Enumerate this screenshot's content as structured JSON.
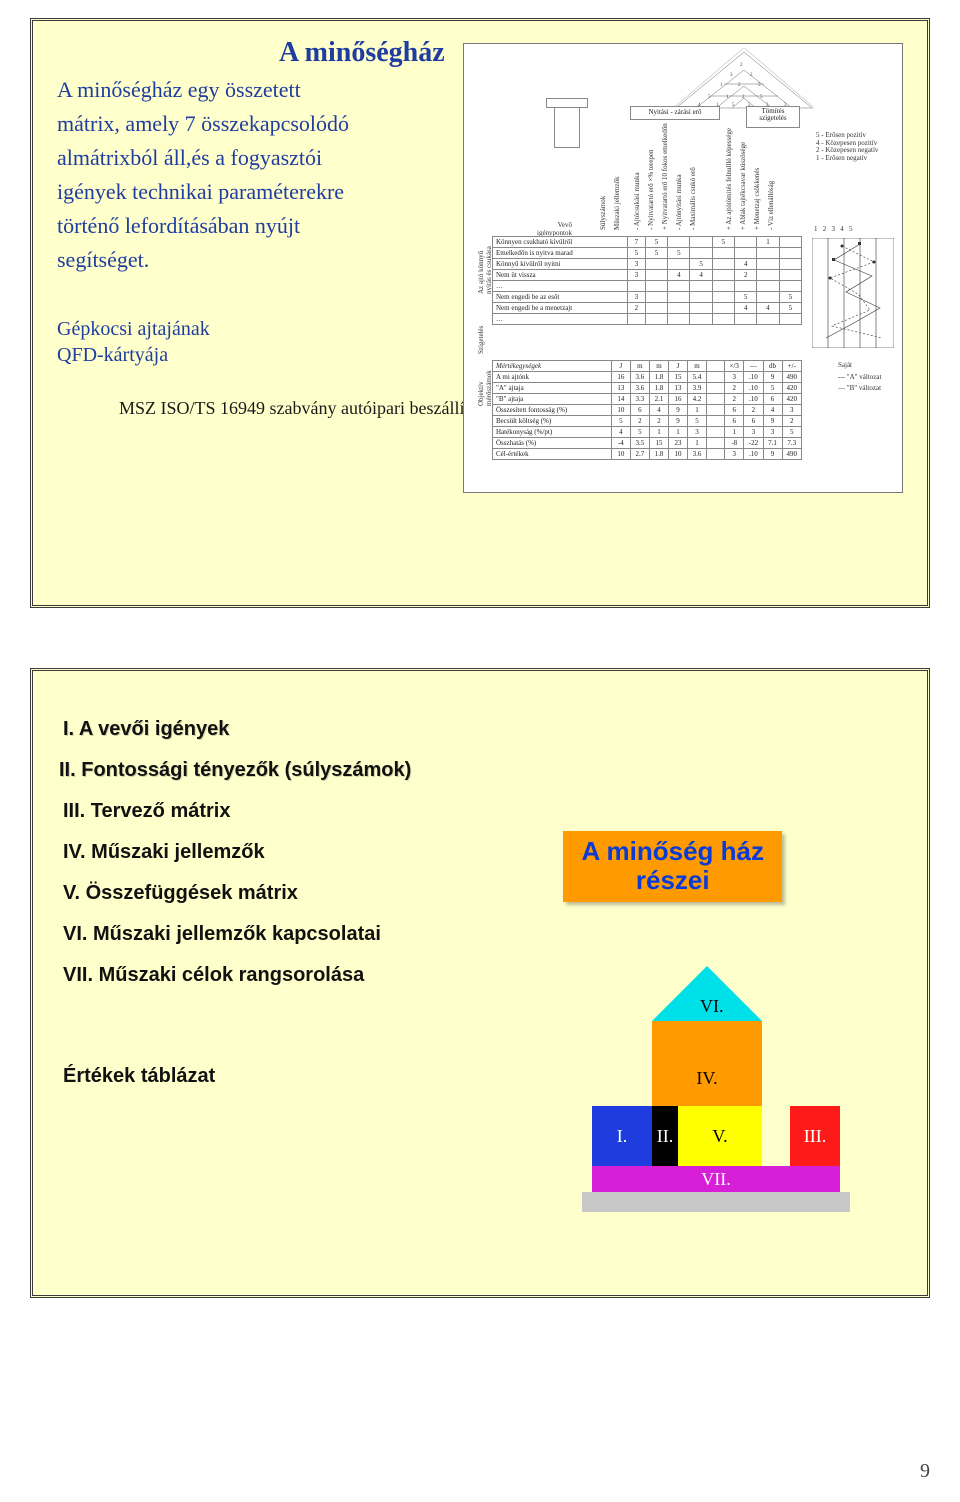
{
  "slide1": {
    "title": "A minőségház",
    "paragraph_lines": [
      "A minőségház egy összetett",
      "mátrix, amely 7 összekapcsolódó",
      "almátrixból áll,és a fogyasztói",
      "igények technikai paraméterekre",
      "történő lefordításában nyújt",
      "segítséget."
    ],
    "caption_line1": "Gépkocsi ajtajának",
    "caption_line2": "QFD-kártyája",
    "footer": "MSZ ISO/TS 16949 szabvány  autóipari beszállítók",
    "qfd": {
      "corr_top_left": "Nyitási - zárási erő",
      "corr_top_right": "Tömítés\nszigetelés",
      "legend_lines": [
        "5 - Erősen pozitív",
        "4 - Közepesen pozitív",
        "2 - Közepesen negatív",
        "1 - Erősen negatív"
      ],
      "left_axis_top": "Vevő\nigénypontok",
      "left_group1": "Az ajtó könnyű\nnyitás és csukása",
      "left_group2": "Szigetelés",
      "left_group3": "Objektív\nmérőszámok",
      "rows": [
        {
          "label": "Könnyen csukható kívülről",
          "w": 7,
          "cells": [
            "5",
            "",
            "",
            "5",
            "",
            "1"
          ]
        },
        {
          "label": "Emelkedőn is nyitva marad",
          "w": 5,
          "cells": [
            "5",
            "5",
            "",
            "",
            "",
            ""
          ]
        },
        {
          "label": "Könnyű kívülről nyitni",
          "w": 3,
          "cells": [
            "",
            "",
            "5",
            "",
            "4",
            ""
          ]
        },
        {
          "label": "Nem üt vissza",
          "w": 3,
          "cells": [
            "",
            "4",
            "4",
            "",
            "2",
            ""
          ]
        },
        {
          "label": "…",
          "w": "",
          "cells": [
            "",
            "",
            "",
            "",
            "",
            ""
          ]
        },
        {
          "label": "Nem engedi be az esőt",
          "w": 3,
          "cells": [
            "",
            "",
            "",
            "",
            "5",
            "",
            "5"
          ]
        },
        {
          "label": "Nem engedi be a menetzajt",
          "w": 2,
          "cells": [
            "",
            "",
            "",
            "",
            "4",
            "4",
            "5"
          ]
        },
        {
          "label": "…",
          "w": "",
          "cells": [
            "",
            "",
            "",
            "",
            "",
            ""
          ]
        }
      ],
      "units_row_label": "Mértékegységek",
      "units_row": [
        "J",
        "m",
        "m",
        "J",
        "m",
        "",
        "×/3",
        "—",
        "db",
        "+/-"
      ],
      "objective_rows": [
        {
          "label": "A mi ajtónk",
          "cells": [
            "16",
            "3.6",
            "1.8",
            "15",
            "5.4",
            "",
            "3",
            ".10",
            "9",
            "490"
          ]
        },
        {
          "label": "\"A\" ajtaja",
          "cells": [
            "13",
            "3.6",
            "1.8",
            "13",
            "3.9",
            "",
            "2",
            ".10",
            "5",
            "420"
          ]
        },
        {
          "label": "\"B\" ajtaja",
          "cells": [
            "14",
            "3.3",
            "2.1",
            "16",
            "4.2",
            "",
            "2",
            ".10",
            "6",
            "420"
          ]
        }
      ],
      "summary_rows": [
        {
          "label": "Összesített fontosság (%)",
          "cells": [
            "10",
            "6",
            "4",
            "9",
            "1",
            "",
            "6",
            "2",
            "4",
            "3"
          ]
        },
        {
          "label": "Becsült költség (%)",
          "cells": [
            "5",
            "2",
            "2",
            "9",
            "5",
            "",
            "6",
            "6",
            "9",
            "2"
          ]
        },
        {
          "label": "Hatékonyság (%/pt)",
          "cells": [
            "4",
            "5",
            "1",
            "1",
            "3",
            "",
            "1",
            "3",
            "3",
            "5"
          ]
        },
        {
          "label": "Összhatás (%)",
          "cells": [
            "-4",
            "3.5",
            "15",
            "23",
            "1",
            "",
            "-8",
            "-22",
            "7.1",
            "7.3"
          ]
        },
        {
          "label": "Cél-értékek",
          "cells": [
            "10",
            "2.7",
            "1.8",
            "10",
            "3.6",
            "",
            "3",
            ".10",
            "9",
            "490"
          ]
        }
      ],
      "tech_cols": [
        "Súlyszámok",
        "Műszaki jellemzők",
        "- Ajtócsukási munka",
        "- Nyitvatartó erő ×% terepen",
        "+ Nyitvatartó erő 10 fokos emelkedőn",
        "- Ajtónyitási munka",
        "- Maximális csukó erő",
        "+ Az ajtótömítés felnullló képessége",
        "+ Ablak tajtékcsavar kúszósége",
        "+ Menetzaj csökkenés",
        "- Víz ellenállóság"
      ],
      "right_scale": [
        "1",
        "2",
        "3",
        "4",
        "5"
      ],
      "right_legend_title": "Saját",
      "right_legend_a": "\"A\" változat",
      "right_legend_b": "\"B\" változat"
    }
  },
  "slide2": {
    "items": [
      "I.   A vevői igények",
      "II. Fontossági tényezők (súlyszámok)",
      "III. Tervező mátrix",
      "IV. Műszaki jellemzők",
      "V. Összefüggések mátrix",
      "VI. Műszaki jellemzők kapcsolatai",
      "VII. Műszaki célok rangsorolása"
    ],
    "right_title_line1": "A minőség ház",
    "right_title_line2": "részei",
    "values_label": "Értékek táblázat",
    "house_labels": {
      "roof": "VI.",
      "body": "IV.",
      "I": "I.",
      "II": "II.",
      "V": "V.",
      "III": "III.",
      "VII": "VII."
    },
    "colors": {
      "orange": "#ff9a00",
      "cyan": "#00e0e8",
      "blue": "#1f3dde",
      "black": "#000000",
      "yellow": "#ffff00",
      "red": "#ff1a1a",
      "magenta": "#d61fd6",
      "grey": "#c8c8c8"
    }
  },
  "page_number": "9"
}
